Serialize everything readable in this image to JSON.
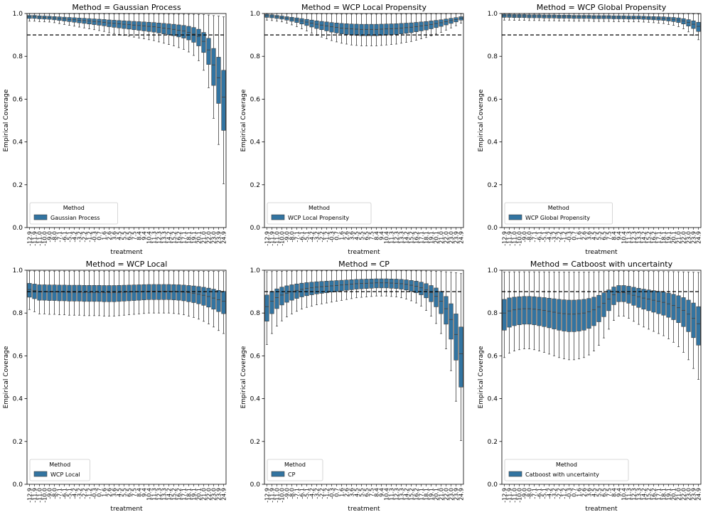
{
  "figure": {
    "shared": {
      "xlabel": "treatment",
      "ylabel": "Empirical Coverage",
      "legend_title": "Method",
      "y_ticks": [
        "0.0",
        "0.2",
        "0.4",
        "0.6",
        "0.8",
        "1.0"
      ],
      "x_tick_labels": [
        "-12.9",
        "-11.9",
        "-11.0",
        "-10.0",
        "-9.0",
        "-8.0",
        "-7.1",
        "-6.1",
        "-5.1",
        "-4.2",
        "-3.2",
        "-2.2",
        "-1.2",
        "-0.3",
        "0.7",
        "1.6",
        "2.6",
        "3.6",
        "4.5",
        "5.5",
        "6.5",
        "7.5",
        "8.4",
        "9.4",
        "10.4",
        "11.3",
        "12.3",
        "13.3",
        "14.2",
        "15.2",
        "16.2",
        "17.1",
        "18.1",
        "19.1",
        "20.1",
        "21.0",
        "22.0",
        "23.0",
        "23.9",
        "24.9"
      ],
      "box_color": "#3274a1",
      "reference_line": 0.9
    }
  },
  "chart_data": [
    {
      "type": "boxplot",
      "title": "Method = Gaussian Process",
      "legend_label": "Gaussian Process",
      "legend_placement": "lower-left",
      "xlabel": "treatment",
      "ylabel": "Empirical Coverage",
      "ylim": [
        0,
        1
      ],
      "hline": 0.9,
      "medians": [
        0.985,
        0.985,
        0.983,
        0.982,
        0.981,
        0.979,
        0.977,
        0.975,
        0.973,
        0.971,
        0.969,
        0.967,
        0.965,
        0.963,
        0.961,
        0.959,
        0.956,
        0.954,
        0.952,
        0.95,
        0.948,
        0.946,
        0.944,
        0.942,
        0.94,
        0.938,
        0.935,
        0.932,
        0.929,
        0.926,
        0.922,
        0.918,
        0.912,
        0.904,
        0.892,
        0.87,
        0.83,
        0.76,
        0.7,
        0.61
      ]
    },
    {
      "type": "boxplot",
      "title": "Method = WCP Local Propensity",
      "legend_label": "WCP Local Propensity",
      "legend_placement": "lower-left",
      "xlabel": "treatment",
      "ylabel": "Empirical Coverage",
      "ylim": [
        0,
        1
      ],
      "hline": 0.9,
      "medians": [
        0.99,
        0.988,
        0.985,
        0.982,
        0.978,
        0.974,
        0.97,
        0.965,
        0.96,
        0.955,
        0.95,
        0.946,
        0.942,
        0.938,
        0.935,
        0.932,
        0.93,
        0.928,
        0.927,
        0.926,
        0.926,
        0.926,
        0.926,
        0.927,
        0.928,
        0.929,
        0.93,
        0.932,
        0.934,
        0.936,
        0.939,
        0.942,
        0.945,
        0.949,
        0.953,
        0.957,
        0.962,
        0.967,
        0.972,
        0.978
      ]
    },
    {
      "type": "boxplot",
      "title": "Method = WCP Global Propensity",
      "legend_label": "WCP Global Propensity",
      "legend_placement": "lower-left",
      "xlabel": "treatment",
      "ylabel": "Empirical Coverage",
      "ylim": [
        0,
        1
      ],
      "hline": 0.9,
      "medians": [
        0.99,
        0.99,
        0.989,
        0.989,
        0.989,
        0.988,
        0.988,
        0.988,
        0.987,
        0.987,
        0.987,
        0.986,
        0.986,
        0.986,
        0.985,
        0.985,
        0.985,
        0.985,
        0.984,
        0.984,
        0.984,
        0.984,
        0.983,
        0.983,
        0.983,
        0.982,
        0.982,
        0.982,
        0.981,
        0.98,
        0.979,
        0.978,
        0.977,
        0.975,
        0.973,
        0.97,
        0.965,
        0.958,
        0.95,
        0.94
      ]
    },
    {
      "type": "boxplot",
      "title": "Method = WCP Local",
      "legend_label": "WCP Local",
      "legend_placement": "lower-left",
      "xlabel": "treatment",
      "ylabel": "Empirical Coverage",
      "ylim": [
        0,
        1
      ],
      "hline": 0.9,
      "medians": [
        0.91,
        0.905,
        0.9,
        0.9,
        0.899,
        0.899,
        0.898,
        0.898,
        0.897,
        0.897,
        0.897,
        0.896,
        0.896,
        0.896,
        0.896,
        0.895,
        0.895,
        0.895,
        0.896,
        0.897,
        0.898,
        0.899,
        0.9,
        0.901,
        0.902,
        0.902,
        0.902,
        0.902,
        0.902,
        0.901,
        0.9,
        0.898,
        0.895,
        0.892,
        0.888,
        0.883,
        0.877,
        0.87,
        0.862,
        0.855
      ]
    },
    {
      "type": "boxplot",
      "title": "Method = CP",
      "legend_label": "CP",
      "legend_placement": "lower-left",
      "xlabel": "treatment",
      "ylabel": "Empirical Coverage",
      "ylim": [
        0,
        1
      ],
      "hline": 0.9,
      "medians": [
        0.83,
        0.855,
        0.872,
        0.884,
        0.893,
        0.9,
        0.906,
        0.911,
        0.915,
        0.918,
        0.921,
        0.923,
        0.925,
        0.927,
        0.929,
        0.931,
        0.933,
        0.935,
        0.937,
        0.938,
        0.939,
        0.94,
        0.941,
        0.941,
        0.941,
        0.94,
        0.939,
        0.937,
        0.934,
        0.93,
        0.925,
        0.918,
        0.908,
        0.895,
        0.878,
        0.855,
        0.82,
        0.77,
        0.7,
        0.61
      ]
    },
    {
      "type": "boxplot",
      "title": "Method = Catboost with uncertainty",
      "legend_label": "Catboost with uncertainty",
      "legend_placement": "lower-left",
      "xlabel": "treatment",
      "ylabel": "Empirical Coverage",
      "ylim": [
        0,
        1
      ],
      "hline": 0.9,
      "medians": [
        0.8,
        0.81,
        0.815,
        0.818,
        0.82,
        0.82,
        0.818,
        0.815,
        0.812,
        0.808,
        0.804,
        0.8,
        0.797,
        0.795,
        0.795,
        0.797,
        0.8,
        0.806,
        0.815,
        0.828,
        0.845,
        0.865,
        0.885,
        0.895,
        0.895,
        0.89,
        0.883,
        0.876,
        0.87,
        0.865,
        0.86,
        0.855,
        0.85,
        0.843,
        0.835,
        0.825,
        0.812,
        0.795,
        0.775,
        0.75
      ]
    }
  ]
}
